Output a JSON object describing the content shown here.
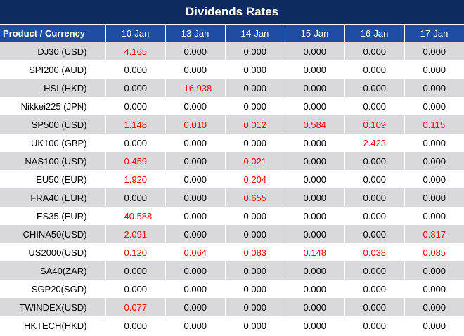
{
  "title": "Dividends Rates",
  "colors": {
    "title_bg": "#0d2b5f",
    "header_bg": "#1f4da3",
    "row_shade": "#d9d9db",
    "nonzero_text": "#ff0000"
  },
  "headers": [
    "Product / Currency",
    "10-Jan",
    "13-Jan",
    "14-Jan",
    "15-Jan",
    "16-Jan",
    "17-Jan"
  ],
  "rows": [
    {
      "product": "DJ30 (USD)",
      "values": [
        "4.165",
        "0.000",
        "0.000",
        "0.000",
        "0.000",
        "0.000"
      ]
    },
    {
      "product": "SPI200 (AUD)",
      "values": [
        "0.000",
        "0.000",
        "0.000",
        "0.000",
        "0.000",
        "0.000"
      ]
    },
    {
      "product": "HSI (HKD)",
      "values": [
        "0.000",
        "16.938",
        "0.000",
        "0.000",
        "0.000",
        "0.000"
      ]
    },
    {
      "product": "Nikkei225 (JPN)",
      "values": [
        "0.000",
        "0.000",
        "0.000",
        "0.000",
        "0.000",
        "0.000"
      ]
    },
    {
      "product": "SP500 (USD)",
      "values": [
        "1.148",
        "0.010",
        "0.012",
        "0.584",
        "0.109",
        "0.115"
      ]
    },
    {
      "product": "UK100 (GBP)",
      "values": [
        "0.000",
        "0.000",
        "0.000",
        "0.000",
        "2.423",
        "0.000"
      ]
    },
    {
      "product": "NAS100 (USD)",
      "values": [
        "0.459",
        "0.000",
        "0.021",
        "0.000",
        "0.000",
        "0.000"
      ]
    },
    {
      "product": "EU50 (EUR)",
      "values": [
        "1.920",
        "0.000",
        "0.204",
        "0.000",
        "0.000",
        "0.000"
      ]
    },
    {
      "product": "FRA40 (EUR)",
      "values": [
        "0.000",
        "0.000",
        "0.655",
        "0.000",
        "0.000",
        "0.000"
      ]
    },
    {
      "product": "ES35 (EUR)",
      "values": [
        "40.588",
        "0.000",
        "0.000",
        "0.000",
        "0.000",
        "0.000"
      ]
    },
    {
      "product": "CHINA50(USD)",
      "values": [
        "2.091",
        "0.000",
        "0.000",
        "0.000",
        "0.000",
        "0.817"
      ]
    },
    {
      "product": "US2000(USD)",
      "values": [
        "0.120",
        "0.064",
        "0.083",
        "0.148",
        "0.038",
        "0.085"
      ]
    },
    {
      "product": "SA40(ZAR)",
      "values": [
        "0.000",
        "0.000",
        "0.000",
        "0.000",
        "0.000",
        "0.000"
      ]
    },
    {
      "product": "SGP20(SGD)",
      "values": [
        "0.000",
        "0.000",
        "0.000",
        "0.000",
        "0.000",
        "0.000"
      ]
    },
    {
      "product": "TWINDEX(USD)",
      "values": [
        "0.077",
        "0.000",
        "0.000",
        "0.000",
        "0.000",
        "0.000"
      ]
    },
    {
      "product": "HKTECH(HKD)",
      "values": [
        "0.000",
        "0.000",
        "0.000",
        "0.000",
        "0.000",
        "0.000"
      ]
    }
  ]
}
